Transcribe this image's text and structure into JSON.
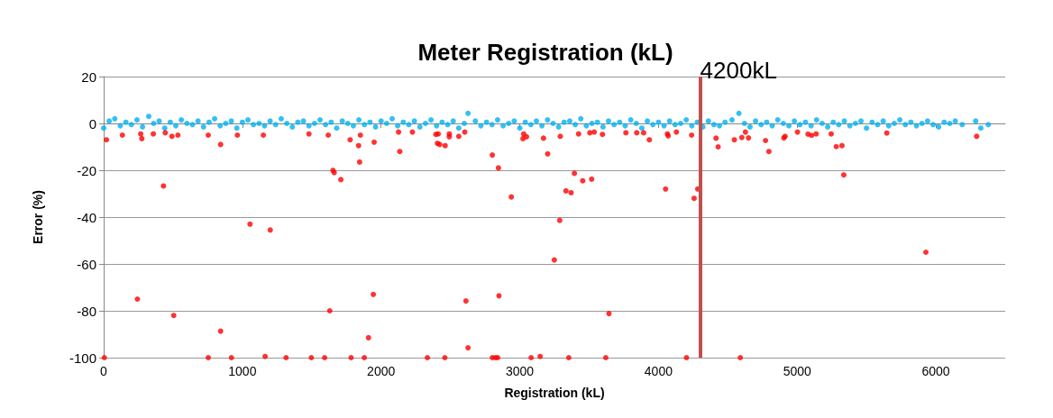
{
  "chart_data": {
    "type": "scatter",
    "title": "Meter Registration (kL)",
    "xlabel": "Registration (kL)",
    "ylabel": "Error (%)",
    "xlim": [
      0,
      6500
    ],
    "xticks": [
      0,
      1000,
      2000,
      3000,
      4000,
      5000,
      6000
    ],
    "ylim": [
      -100,
      20
    ],
    "yticks": [
      -100,
      -80,
      -60,
      -40,
      -20,
      0,
      20
    ],
    "grid": "y",
    "marker": "circle",
    "ref_lines": [
      {
        "axis": "x",
        "value": 4300,
        "label": "4200kL",
        "color": "#c0504d"
      }
    ],
    "series": [
      {
        "color": "#00b0f0",
        "x": [
          0,
          40,
          80,
          120,
          160,
          200,
          240,
          280,
          325,
          360,
          400,
          440,
          480,
          520,
          560,
          600,
          640,
          680,
          720,
          760,
          800,
          840,
          880,
          920,
          960,
          1000,
          1040,
          1080,
          1120,
          1160,
          1200,
          1240,
          1280,
          1320,
          1360,
          1400,
          1440,
          1480,
          1520,
          1560,
          1600,
          1640,
          1680,
          1720,
          1760,
          1800,
          1840,
          1880,
          1920,
          1960,
          2000,
          2040,
          2080,
          2120,
          2160,
          2200,
          2240,
          2280,
          2320,
          2360,
          2400,
          2440,
          2480,
          2520,
          2560,
          2600,
          2627,
          2680,
          2720,
          2760,
          2800,
          2840,
          2880,
          2920,
          2960,
          3000,
          3040,
          3080,
          3120,
          3160,
          3200,
          3240,
          3280,
          3320,
          3360,
          3400,
          3440,
          3480,
          3520,
          3560,
          3600,
          3640,
          3680,
          3720,
          3760,
          3800,
          3840,
          3880,
          3920,
          3960,
          4000,
          4040,
          4080,
          4120,
          4160,
          4200,
          4240,
          4280,
          4320,
          4360,
          4400,
          4440,
          4480,
          4530,
          4580,
          4620,
          4660,
          4700,
          4740,
          4780,
          4820,
          4860,
          4900,
          4940,
          4980,
          5020,
          5060,
          5100,
          5140,
          5180,
          5220,
          5260,
          5300,
          5340,
          5380,
          5420,
          5460,
          5500,
          5540,
          5580,
          5620,
          5660,
          5700,
          5740,
          5780,
          5820,
          5860,
          5900,
          5940,
          5980,
          6020,
          6060,
          6100,
          6140,
          6190,
          6287,
          6324,
          6378
        ],
        "values": [
          -2,
          1,
          2,
          -1,
          0.5,
          -0.5,
          1.5,
          -1.5,
          3,
          0,
          1,
          -2,
          0.5,
          -1,
          1.5,
          0,
          -0.5,
          1,
          -1.5,
          0.5,
          2,
          -1,
          0,
          1,
          -2,
          0.5,
          1.5,
          -0.5,
          0,
          -1,
          1,
          -0.5,
          2,
          0,
          -1.5,
          0.5,
          1,
          -1,
          0,
          1.5,
          -0.5,
          0.5,
          -2,
          1,
          0,
          -1,
          1.5,
          -0.5,
          0.5,
          -1.5,
          1,
          0,
          2,
          -1,
          0.5,
          -0.5,
          1,
          -1.5,
          0,
          1.5,
          -1,
          0.5,
          -0.5,
          1,
          -2,
          0,
          4.3,
          1,
          -1,
          0.5,
          -0.5,
          1.5,
          -1,
          0,
          1,
          -2,
          0.5,
          -0.5,
          1,
          -1,
          1.5,
          0,
          -1.5,
          0.5,
          1,
          -0.5,
          2,
          -1,
          0,
          0.5,
          -1.5,
          1,
          -0.5,
          0.5,
          -1,
          1.5,
          0,
          -2,
          1,
          -0.5,
          0.5,
          -1,
          1,
          -0.5,
          0,
          1.5,
          -1,
          0.5,
          -1.5,
          1,
          -0.5,
          -1,
          0.5,
          1.5,
          4.3,
          0,
          -1.5,
          1,
          -0.5,
          0.5,
          -1,
          1.5,
          0,
          -1,
          1,
          -0.5,
          0.5,
          -1,
          1.5,
          0,
          -1.5,
          0.5,
          -0.5,
          1,
          -1,
          0,
          1,
          -2,
          0.5,
          -0.5,
          1,
          -1,
          0,
          1.5,
          -0.5,
          0.5,
          -1,
          0,
          1,
          -0.5,
          -1.5,
          0.5,
          0,
          1,
          -0.5,
          1,
          -2,
          -0.5
        ]
      },
      {
        "color": "#ff0000",
        "x": [
          20,
          135,
          267,
          275,
          358,
          444,
          492,
          535,
          754,
          843,
          964,
          1151,
          1480,
          1619,
          1777,
          1838,
          1851,
          1950,
          1845,
          2126,
          2135,
          1653,
          1662,
          1710,
          431,
          1055,
          1201,
          243,
          505,
          843,
          1630,
          1944,
          1909,
          5,
          754,
          921,
          1164,
          1315,
          1497,
          1593,
          1784,
          1879,
          2226,
          2395,
          2412,
          2406,
          2423,
          2462,
          2492,
          2492,
          2560,
          2603,
          2802,
          2846,
          2939,
          3028,
          3023,
          3049,
          3171,
          3201,
          3292,
          3394,
          3333,
          3370,
          3454,
          3518,
          3288,
          3249,
          3424,
          3505,
          3537,
          3596,
          3765,
          3843,
          3893,
          3934,
          4064,
          4070,
          4129,
          4239,
          4051,
          4257,
          4283,
          4415,
          4430,
          2612,
          2850,
          3643,
          2627,
          2334,
          2460,
          2802,
          2824,
          2841,
          3082,
          3147,
          3353,
          3620,
          4202,
          4547,
          4601,
          4627,
          4649,
          4772,
          4796,
          4904,
          4913,
          5002,
          5078,
          5104,
          5137,
          5245,
          5282,
          5323,
          5336,
          5646,
          5928,
          6294,
          4590
        ],
        "values": [
          -7,
          -5,
          -4.5,
          -6.5,
          -4.5,
          -4,
          -5.5,
          -5,
          -5,
          -9,
          -5,
          -5,
          -4.5,
          -5,
          -7,
          -9.5,
          -5,
          -8,
          -16.5,
          -3.7,
          -12,
          -20,
          -21,
          -24,
          -26.7,
          -43,
          -45.5,
          -75,
          -82,
          -88.7,
          -80,
          -73,
          -91.5,
          -100,
          -100,
          -100,
          -99.5,
          -100,
          -100,
          -100,
          -100,
          -100,
          -3.7,
          -4.7,
          -4.5,
          -8.5,
          -9,
          -9.5,
          -4.5,
          -5.7,
          -5.5,
          -3.7,
          -13.5,
          -19,
          -31.4,
          -4.5,
          -6.5,
          -5.7,
          -6.3,
          -13,
          -5.5,
          -21.3,
          -28.8,
          -29.6,
          -24.5,
          -23.8,
          -41.4,
          -58.3,
          -4.5,
          -4,
          -3.7,
          -4.7,
          -4,
          -4,
          -4,
          -7,
          -4.5,
          -5.3,
          -3.7,
          -5,
          -28,
          -32,
          -28,
          -6.3,
          -10,
          -75.8,
          -73.6,
          -81.2,
          -95.8,
          -100,
          -100,
          -100,
          -100,
          -100,
          -100,
          -99.5,
          -100,
          -100,
          -100,
          -7,
          -6,
          -3.7,
          -6.2,
          -7.3,
          -12,
          -6.2,
          -5.5,
          -3.7,
          -4.6,
          -5.1,
          -4.5,
          -4.5,
          -9.9,
          -9.5,
          -22,
          -4.1,
          -55,
          -5.5,
          -100
        ]
      }
    ]
  }
}
